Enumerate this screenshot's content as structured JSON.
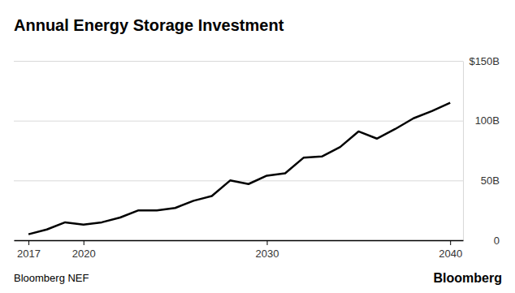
{
  "chart_data": {
    "type": "line",
    "title": "Annual Energy Storage Investment",
    "source": "Bloomberg NEF",
    "credit": "Bloomberg",
    "x": [
      2017,
      2018,
      2019,
      2020,
      2021,
      2022,
      2023,
      2024,
      2025,
      2026,
      2027,
      2028,
      2029,
      2030,
      2031,
      2032,
      2033,
      2034,
      2035,
      2036,
      2037,
      2038,
      2039,
      2040
    ],
    "values": [
      5,
      9,
      15,
      13,
      15,
      19,
      25,
      25,
      27,
      33,
      37,
      50,
      47,
      54,
      56,
      69,
      70,
      78,
      91,
      85,
      93,
      102,
      108,
      115
    ],
    "color": "#000000",
    "xlim": [
      2016.2,
      2040.7
    ],
    "xticks": [
      2017,
      2020,
      2030,
      2040
    ],
    "ylim": [
      0,
      150
    ],
    "yticks": [
      0,
      {
        "value": 50,
        "label": "50B"
      },
      {
        "value": 100,
        "label": "100B"
      },
      {
        "value": 150,
        "label": "$150B"
      }
    ],
    "grid": true
  }
}
